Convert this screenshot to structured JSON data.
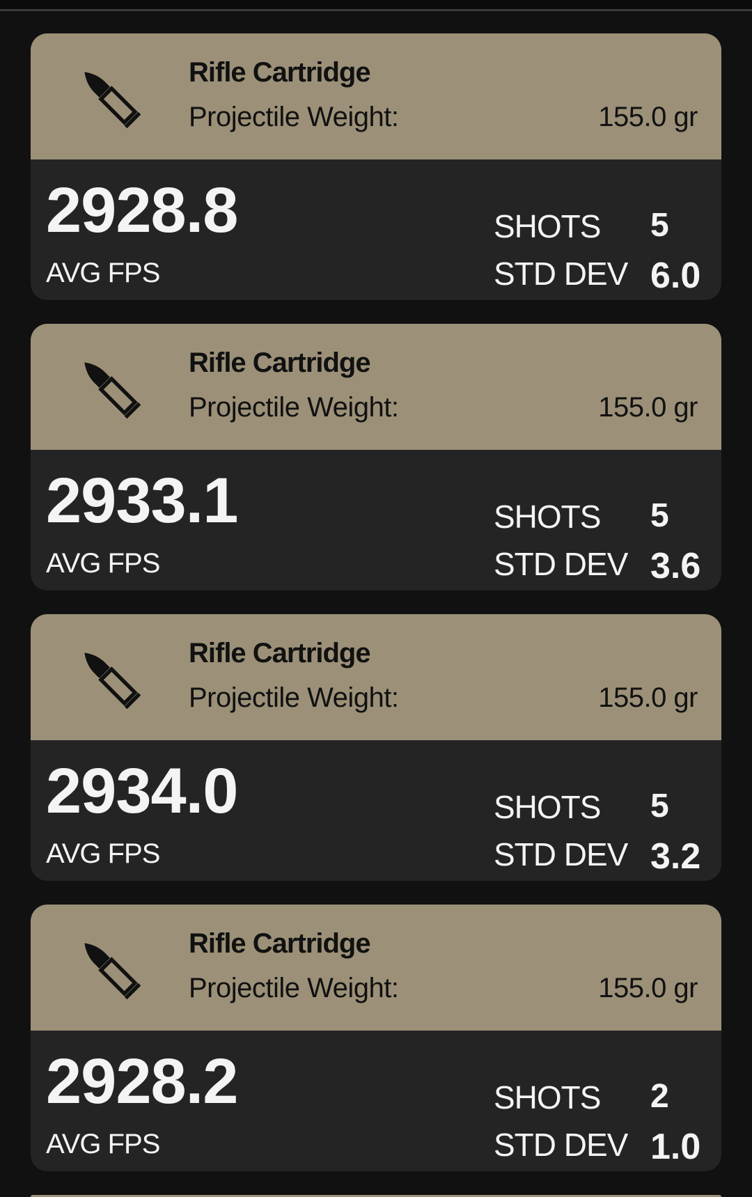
{
  "colors": {
    "background": "#111111",
    "card_header": "#9c9178",
    "card_body": "#242424",
    "text_light": "#f4f4f4",
    "text_dark": "#111111"
  },
  "sessions": [
    {
      "icon": "rifle-bullet-icon",
      "title": "Rifle Cartridge",
      "weight_label": "Projectile Weight:",
      "weight_value": "155.0 gr",
      "avg_fps": "2928.8",
      "avg_fps_label": "AVG FPS",
      "shots_label": "SHOTS",
      "shots": "5",
      "std_dev_label": "STD DEV",
      "std_dev": "6.0"
    },
    {
      "icon": "rifle-bullet-icon",
      "title": "Rifle Cartridge",
      "weight_label": "Projectile Weight:",
      "weight_value": "155.0 gr",
      "avg_fps": "2933.1",
      "avg_fps_label": "AVG FPS",
      "shots_label": "SHOTS",
      "shots": "5",
      "std_dev_label": "STD DEV",
      "std_dev": "3.6"
    },
    {
      "icon": "rifle-bullet-icon",
      "title": "Rifle Cartridge",
      "weight_label": "Projectile Weight:",
      "weight_value": "155.0 gr",
      "avg_fps": "2934.0",
      "avg_fps_label": "AVG FPS",
      "shots_label": "SHOTS",
      "shots": "5",
      "std_dev_label": "STD DEV",
      "std_dev": "3.2"
    },
    {
      "icon": "rifle-bullet-icon",
      "title": "Rifle Cartridge",
      "weight_label": "Projectile Weight:",
      "weight_value": "155.0 gr",
      "avg_fps": "2928.2",
      "avg_fps_label": "AVG FPS",
      "shots_label": "SHOTS",
      "shots": "2",
      "std_dev_label": "STD DEV",
      "std_dev": "1.0"
    }
  ]
}
